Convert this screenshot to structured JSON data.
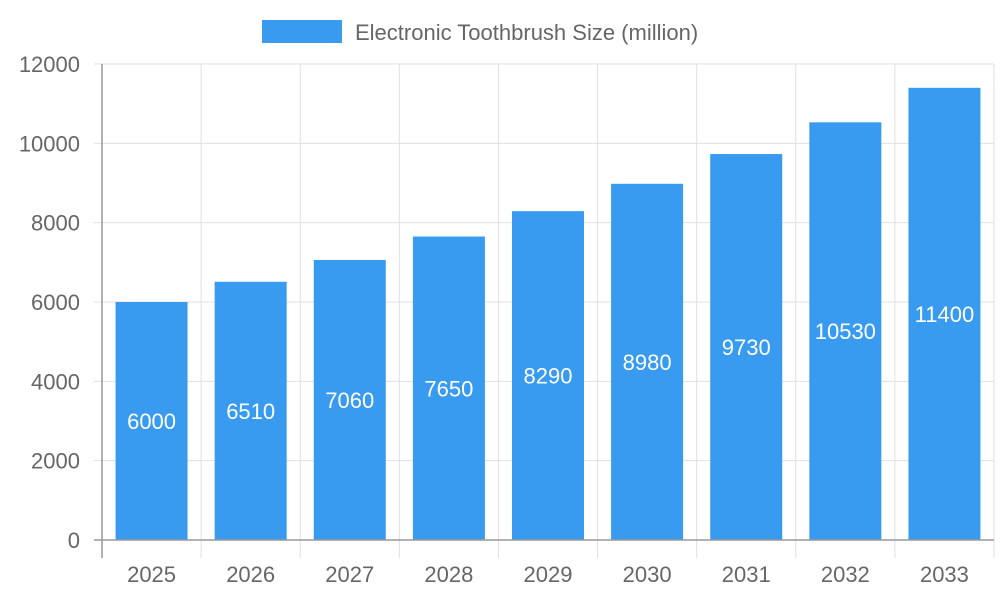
{
  "chart_data": {
    "type": "bar",
    "title": "",
    "xlabel": "",
    "ylabel": "",
    "categories": [
      "2025",
      "2026",
      "2027",
      "2028",
      "2029",
      "2030",
      "2031",
      "2032",
      "2033"
    ],
    "series": [
      {
        "name": "Electronic Toothbrush Size (million)",
        "values": [
          6000,
          6510,
          7060,
          7650,
          8290,
          8980,
          9730,
          10530,
          11400
        ],
        "color": "#389bf0"
      }
    ],
    "ylim": [
      0,
      12000
    ],
    "yticks": [
      0,
      2000,
      4000,
      6000,
      8000,
      10000,
      12000
    ],
    "grid": true,
    "legend": "top-center",
    "data_labels": true
  }
}
